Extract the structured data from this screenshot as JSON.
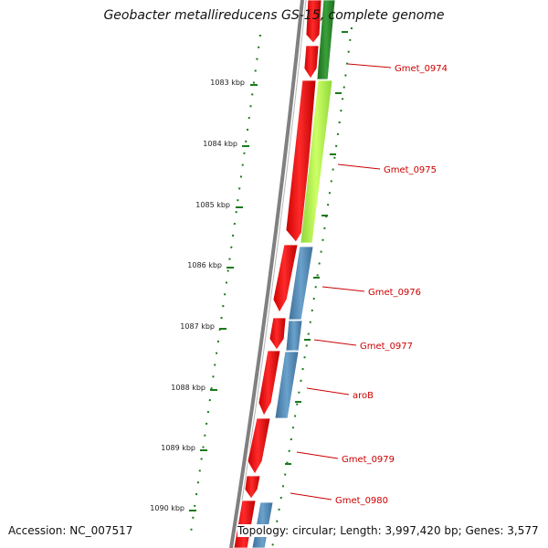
{
  "title": "Geobacter metallireducens GS-15, complete genome",
  "footer": {
    "accession": "Accession: NC_007517",
    "summary": "Topology: circular; Length: 3,997,420 bp; Genes: 3,577"
  },
  "ruler_labels": [
    "1083 kbp",
    "1084 kbp",
    "1085 kbp",
    "1086 kbp",
    "1087 kbp",
    "1088 kbp",
    "1089 kbp",
    "1090 kbp"
  ],
  "gene_labels": [
    "Gmet_0974",
    "Gmet_0975",
    "Gmet_0976",
    "Gmet_0977",
    "aroB",
    "Gmet_0979",
    "Gmet_0980"
  ],
  "colors": {
    "cds": "#ff0000",
    "green_feature": "#2e8b2e",
    "lime_feature": "#aaff44",
    "blue_feature": "#4a86b4",
    "backbone": "#808080",
    "ruler": "#1a7a1a",
    "label": "#cc0000"
  }
}
